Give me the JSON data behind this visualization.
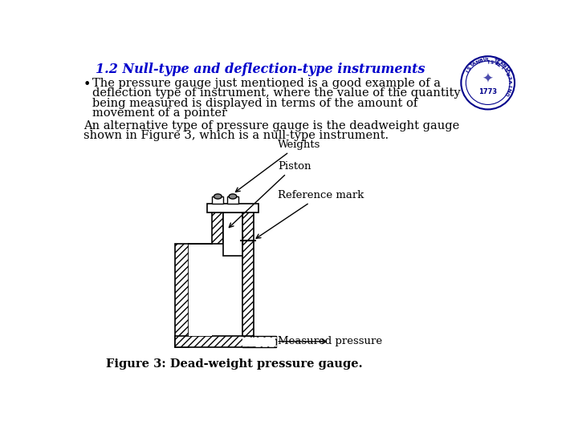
{
  "title": "1.2 Null-type and deflection-type instruments",
  "title_color": "#0000CC",
  "bullet_lines": [
    "The pressure gauge just mentioned is a good example of a",
    "deflection type of instrument, where the value of the quantity",
    "being measured is displayed in terms of the amount of",
    "movement of a pointer"
  ],
  "para_lines": [
    "An alternative type of pressure gauge is the deadweight gauge",
    "shown in Figure 3, which is a null-type instrument."
  ],
  "caption": "Figure 3: Dead-weight pressure gauge.",
  "bg_color": "#ffffff",
  "text_color": "#000000",
  "title_color2": "#0000CC",
  "title_fontsize": 11.5,
  "body_fontsize": 10.5,
  "caption_fontsize": 10.5,
  "label_fontsize": 9.5
}
